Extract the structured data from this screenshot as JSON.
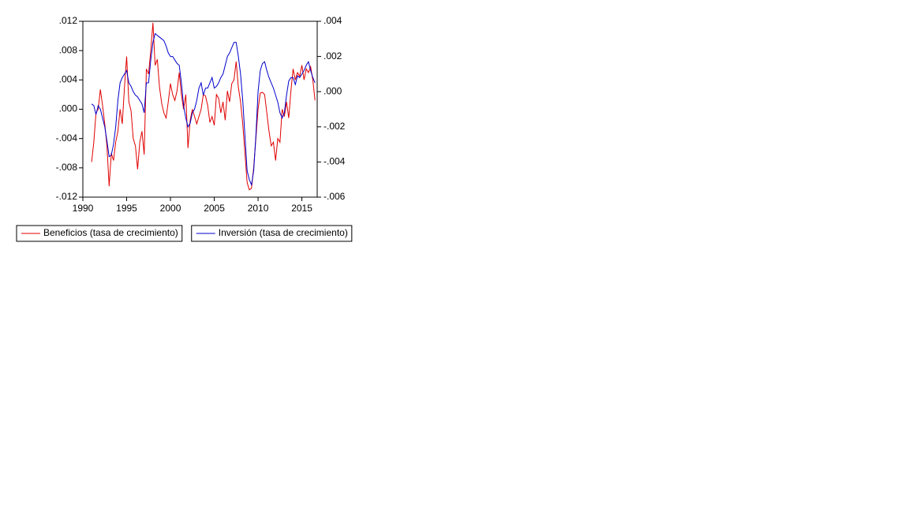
{
  "chart_data": {
    "type": "line",
    "x": [
      1991,
      1991.25,
      1991.5,
      1991.75,
      1992,
      1992.25,
      1992.5,
      1992.75,
      1993,
      1993.25,
      1993.5,
      1993.75,
      1994,
      1994.25,
      1994.5,
      1994.75,
      1995,
      1995.25,
      1995.5,
      1995.75,
      1996,
      1996.25,
      1996.5,
      1996.75,
      1997,
      1997.25,
      1997.5,
      1997.75,
      1998,
      1998.25,
      1998.5,
      1998.75,
      1999,
      1999.25,
      1999.5,
      1999.75,
      2000,
      2000.25,
      2000.5,
      2000.75,
      2001,
      2001.25,
      2001.5,
      2001.75,
      2002,
      2002.25,
      2002.5,
      2002.75,
      2003,
      2003.25,
      2003.5,
      2003.75,
      2004,
      2004.25,
      2004.5,
      2004.75,
      2005,
      2005.25,
      2005.5,
      2005.75,
      2006,
      2006.25,
      2006.5,
      2006.75,
      2007,
      2007.25,
      2007.5,
      2007.75,
      2008,
      2008.25,
      2008.5,
      2008.75,
      2009,
      2009.25,
      2009.5,
      2009.75,
      2010,
      2010.25,
      2010.5,
      2010.75,
      2011,
      2011.25,
      2011.5,
      2011.75,
      2012,
      2012.25,
      2012.5,
      2012.75,
      2013,
      2013.25,
      2013.5,
      2013.75,
      2014,
      2014.25,
      2014.5,
      2014.75,
      2015,
      2015.25,
      2015.5,
      2015.75,
      2016,
      2016.25,
      2016.5
    ],
    "series": [
      {
        "name": "Beneficios (tasa de crecimiento)",
        "color": "#e00000",
        "axis": "y",
        "values": [
          -0.0072,
          -0.0045,
          -0.0005,
          0.0,
          0.0027,
          0.0005,
          -0.002,
          -0.005,
          -0.0105,
          -0.006,
          -0.007,
          -0.0045,
          -0.003,
          0.0,
          -0.002,
          0.003,
          0.0072,
          0.001,
          -0.0002,
          -0.004,
          -0.005,
          -0.0082,
          -0.0045,
          -0.003,
          -0.0062,
          0.0055,
          0.0048,
          0.008,
          0.0118,
          0.006,
          0.0068,
          0.003,
          0.0008,
          -0.0005,
          -0.0012,
          0.001,
          0.0035,
          0.002,
          0.0012,
          0.0025,
          0.005,
          0.002,
          0.0,
          0.002,
          -0.0053,
          -0.0015,
          0.0,
          -0.001,
          -0.002,
          -0.001,
          0.0,
          0.002,
          0.0018,
          0.0005,
          -0.0018,
          -0.001,
          -0.0022,
          0.002,
          0.0015,
          -0.0005,
          0.001,
          -0.0015,
          0.0025,
          0.001,
          0.0035,
          0.004,
          0.0065,
          0.003,
          0.001,
          -0.002,
          -0.006,
          -0.01,
          -0.011,
          -0.0108,
          -0.008,
          -0.004,
          0.0,
          0.0022,
          0.0023,
          0.002,
          -0.0005,
          -0.003,
          -0.005,
          -0.0045,
          -0.007,
          -0.004,
          -0.0045,
          0.0,
          -0.001,
          0.001,
          -0.0012,
          0.0025,
          0.0055,
          0.004,
          0.005,
          0.0045,
          0.006,
          0.004,
          0.0055,
          0.005,
          0.0058,
          0.004,
          0.0012
        ]
      },
      {
        "name": "Inversión (tasa de crecimiento)",
        "color": "#0000cc",
        "axis": "y2",
        "values": [
          -0.0007,
          -0.0008,
          -0.0013,
          -0.0008,
          -0.001,
          -0.0015,
          -0.002,
          -0.0028,
          -0.0037,
          -0.0036,
          -0.003,
          -0.002,
          -0.0005,
          0.0005,
          0.0008,
          0.001,
          0.0012,
          0.0005,
          0.0003,
          0.0,
          -0.0002,
          -0.0003,
          -0.0005,
          -0.0007,
          -0.0012,
          0.0005,
          0.0005,
          0.0018,
          0.0028,
          0.0033,
          0.0032,
          0.0031,
          0.003,
          0.0029,
          0.0026,
          0.0022,
          0.002,
          0.002,
          0.0018,
          0.0016,
          0.0015,
          0.0005,
          -0.0008,
          -0.0015,
          -0.002,
          -0.0018,
          -0.0012,
          -0.001,
          -0.0005,
          0.0002,
          0.0005,
          -0.0002,
          0.0002,
          0.0002,
          0.0005,
          0.0008,
          0.0002,
          0.0003,
          0.0005,
          0.0008,
          0.001,
          0.0015,
          0.002,
          0.0022,
          0.0025,
          0.0028,
          0.0028,
          0.002,
          0.001,
          -0.0005,
          -0.0025,
          -0.0045,
          -0.005,
          -0.0053,
          -0.0045,
          -0.0025,
          0.0,
          0.0012,
          0.0016,
          0.0017,
          0.0012,
          0.0008,
          0.0005,
          0.0002,
          -0.0002,
          -0.0006,
          -0.0012,
          -0.0015,
          -0.0012,
          -0.0002,
          0.0006,
          0.0008,
          0.0008,
          0.0004,
          0.0009,
          0.0008,
          0.001,
          0.0012,
          0.0015,
          0.0017,
          0.0012,
          0.0008,
          0.0005
        ]
      }
    ],
    "xlim": [
      1990,
      2016.75
    ],
    "xticks": [
      1990,
      1995,
      2000,
      2005,
      2010,
      2015
    ],
    "ylim": [
      -0.012,
      0.012
    ],
    "yticks": [
      {
        "value": -0.012,
        "label": "-.012"
      },
      {
        "value": -0.008,
        "label": "-.008"
      },
      {
        "value": -0.004,
        "label": "-.004"
      },
      {
        "value": 0,
        "label": ".000"
      },
      {
        "value": 0.004,
        "label": ".004"
      },
      {
        "value": 0.008,
        "label": ".008"
      },
      {
        "value": 0.012,
        "label": ".012"
      }
    ],
    "y2lim": [
      -0.006,
      0.004
    ],
    "y2ticks": [
      {
        "value": -0.006,
        "label": "-.006"
      },
      {
        "value": -0.004,
        "label": "-.004"
      },
      {
        "value": -0.002,
        "label": "-.002"
      },
      {
        "value": 0,
        "label": ".000"
      },
      {
        "value": 0.002,
        "label": ".002"
      },
      {
        "value": 0.004,
        "label": ".004"
      }
    ]
  }
}
